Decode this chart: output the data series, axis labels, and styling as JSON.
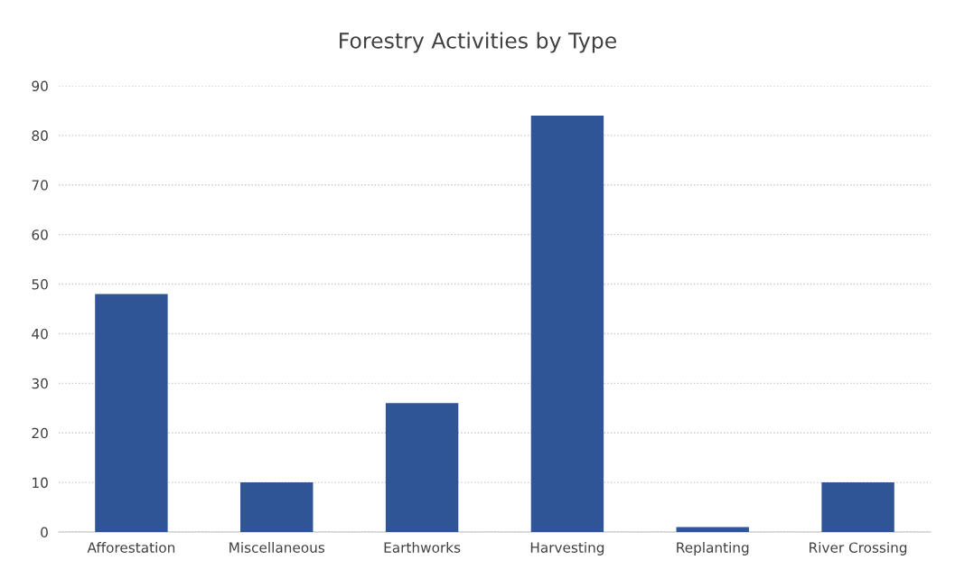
{
  "chart_data": {
    "type": "bar",
    "title": "Forestry Activities by Type",
    "categories": [
      "Afforestation",
      "Miscellaneous",
      "Earthworks",
      "Harvesting",
      "Replanting",
      "River Crossing"
    ],
    "values": [
      48,
      10,
      26,
      84,
      1,
      10
    ],
    "color": "#2f5597",
    "ylim": [
      0,
      90
    ],
    "yticks": [
      0,
      10,
      20,
      30,
      40,
      50,
      60,
      70,
      80,
      90
    ],
    "grid": "y"
  }
}
